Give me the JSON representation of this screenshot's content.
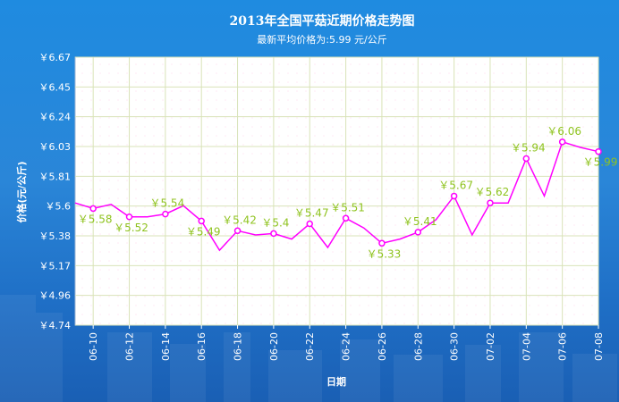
{
  "chart_data": {
    "type": "line",
    "title": "2013年全国平菇近期价格走势图",
    "subtitle": "最新平均价格为:5.99 元/公斤",
    "xlabel": "日期",
    "ylabel": "价格(元/公斤)",
    "y_prefix": "￥",
    "ylim": [
      4.74,
      6.67
    ],
    "yticks": [
      "6.67",
      "6.45",
      "6.24",
      "6.03",
      "5.81",
      "5.6",
      "5.38",
      "5.17",
      "4.96",
      "4.74"
    ],
    "xtick_labels": [
      "06-10",
      "06-12",
      "06-14",
      "06-16",
      "06-18",
      "06-20",
      "06-22",
      "06-24",
      "06-26",
      "06-28",
      "06-30",
      "07-02",
      "07-04",
      "07-06",
      "07-08"
    ],
    "grid": true,
    "colors": {
      "line": "#ff00ff",
      "label": "#8fc31f",
      "plot_bg": "#ffffff",
      "grid": "#d9e3b8"
    },
    "series": [
      {
        "values": [
          5.62,
          5.58,
          5.61,
          5.52,
          5.52,
          5.54,
          5.6,
          5.49,
          5.28,
          5.42,
          5.39,
          5.4,
          5.36,
          5.47,
          5.3,
          5.51,
          5.44,
          5.33,
          5.36,
          5.41,
          5.5,
          5.67,
          5.39,
          5.62,
          5.62,
          5.94,
          5.67,
          6.06,
          6.02,
          5.99
        ],
        "markers": [
          1,
          3,
          5,
          7,
          9,
          11,
          13,
          15,
          17,
          19,
          21,
          23,
          25,
          27,
          29
        ],
        "labels": [
          {
            "i": 1,
            "text": "￥5.58"
          },
          {
            "i": 3,
            "text": "￥5.52"
          },
          {
            "i": 5,
            "text": "￥5.54"
          },
          {
            "i": 7,
            "text": "￥5.49"
          },
          {
            "i": 9,
            "text": "￥5.42"
          },
          {
            "i": 11,
            "text": "￥5.4"
          },
          {
            "i": 13,
            "text": "￥5.47"
          },
          {
            "i": 15,
            "text": "￥5.51"
          },
          {
            "i": 17,
            "text": "￥5.33"
          },
          {
            "i": 19,
            "text": "￥5.41"
          },
          {
            "i": 21,
            "text": "￥5.67"
          },
          {
            "i": 23,
            "text": "￥5.62"
          },
          {
            "i": 25,
            "text": "￥5.94"
          },
          {
            "i": 27,
            "text": "￥6.06"
          },
          {
            "i": 29,
            "text": "￥5.99"
          }
        ]
      }
    ]
  }
}
